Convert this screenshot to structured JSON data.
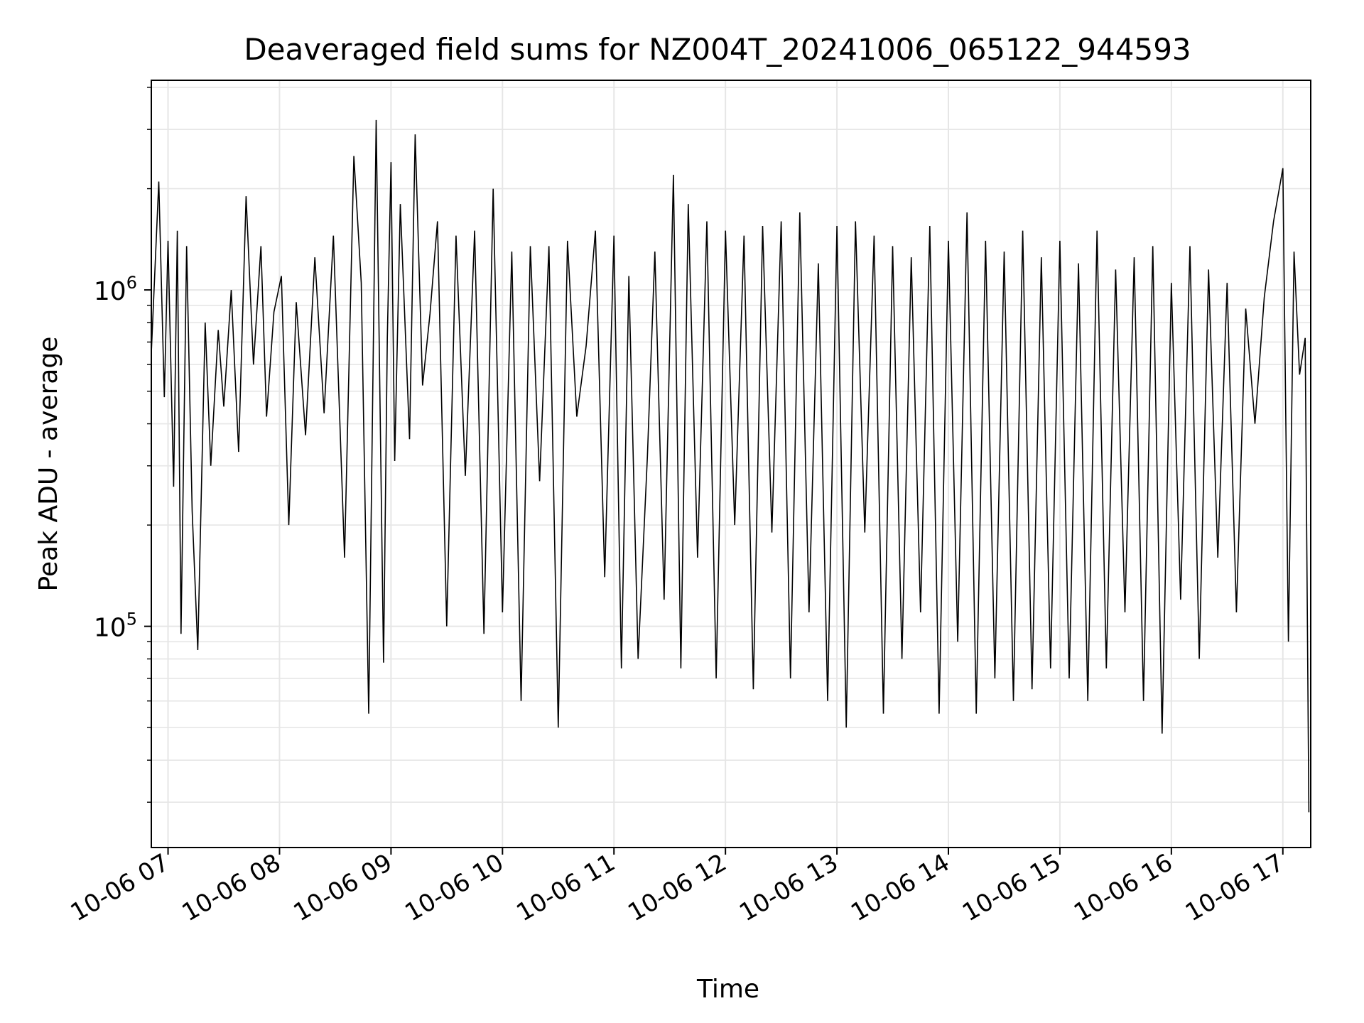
{
  "chart_data": {
    "type": "line",
    "title": "Deaveraged field sums for NZ004T_20241006_065122_944593",
    "xlabel": "Time",
    "ylabel": "Peak ADU - average",
    "x_scale": "time",
    "y_scale": "log",
    "xlim": [
      "2024-10-06 06:51",
      "2024-10-06 17:15"
    ],
    "ylim": [
      22000,
      4200000
    ],
    "x_ticks": [
      "10-06 07",
      "10-06 08",
      "10-06 09",
      "10-06 10",
      "10-06 11",
      "10-06 12",
      "10-06 13",
      "10-06 14",
      "10-06 15",
      "10-06 16",
      "10-06 17"
    ],
    "y_ticks": [
      {
        "value": 100000,
        "base": "10",
        "exp": "5"
      },
      {
        "value": 1000000,
        "base": "10",
        "exp": "6"
      }
    ],
    "grid": true,
    "line_color": "#000000",
    "series": [
      {
        "x": [
          "06:51",
          "06:55",
          "06:58",
          "07:00",
          "07:03",
          "07:05",
          "07:07",
          "07:10",
          "07:13",
          "07:16",
          "07:20",
          "07:23",
          "07:27",
          "07:30",
          "07:34",
          "07:38",
          "07:42",
          "07:46",
          "07:50",
          "07:53",
          "07:57",
          "08:01",
          "08:05",
          "08:09",
          "08:14",
          "08:19",
          "08:24",
          "08:29",
          "08:35",
          "08:40",
          "08:44",
          "08:48",
          "08:52",
          "08:56",
          "08:58",
          "09:00",
          "09:02",
          "09:05",
          "09:10",
          "09:13",
          "09:17",
          "09:21",
          "09:25",
          "09:30",
          "09:35",
          "09:40",
          "09:45",
          "09:50",
          "09:55",
          "10:00",
          "10:05",
          "10:10",
          "10:15",
          "10:20",
          "10:25",
          "10:30",
          "10:35",
          "10:40",
          "10:45",
          "10:50",
          "10:55",
          "11:00",
          "11:04",
          "11:08",
          "11:13",
          "11:18",
          "11:22",
          "11:27",
          "11:32",
          "11:36",
          "11:40",
          "11:45",
          "11:50",
          "11:55",
          "12:00",
          "12:05",
          "12:10",
          "12:15",
          "12:20",
          "12:25",
          "12:30",
          "12:35",
          "12:40",
          "12:45",
          "12:50",
          "12:55",
          "13:00",
          "13:05",
          "13:10",
          "13:15",
          "13:20",
          "13:25",
          "13:30",
          "13:35",
          "13:40",
          "13:45",
          "13:50",
          "13:55",
          "14:00",
          "14:05",
          "14:10",
          "14:15",
          "14:20",
          "14:25",
          "14:30",
          "14:35",
          "14:40",
          "14:45",
          "14:50",
          "14:55",
          "15:00",
          "15:05",
          "15:10",
          "15:15",
          "15:20",
          "15:25",
          "15:30",
          "15:35",
          "15:40",
          "15:45",
          "15:50",
          "15:55",
          "16:00",
          "16:05",
          "16:10",
          "16:15",
          "16:20",
          "16:25",
          "16:30",
          "16:35",
          "16:40",
          "16:45",
          "16:50",
          "16:55",
          "17:00",
          "17:03",
          "17:06",
          "17:09",
          "17:12",
          "17:14"
        ],
        "y": [
          650000,
          2100000,
          480000,
          1400000,
          260000,
          1500000,
          95000,
          1350000,
          220000,
          85000,
          800000,
          300000,
          760000,
          450000,
          1000000,
          330000,
          1900000,
          600000,
          1350000,
          420000,
          860000,
          1100000,
          200000,
          920000,
          370000,
          1250000,
          430000,
          1450000,
          160000,
          2500000,
          1050000,
          55000,
          3200000,
          78000,
          720000,
          2400000,
          310000,
          1800000,
          360000,
          2900000,
          520000,
          850000,
          1600000,
          100000,
          1450000,
          280000,
          1500000,
          95000,
          2000000,
          110000,
          1300000,
          60000,
          1350000,
          270000,
          1350000,
          50000,
          1400000,
          420000,
          680000,
          1500000,
          140000,
          1450000,
          75000,
          1100000,
          80000,
          320000,
          1300000,
          120000,
          2200000,
          75000,
          1800000,
          160000,
          1600000,
          70000,
          1500000,
          200000,
          1450000,
          65000,
          1550000,
          190000,
          1600000,
          70000,
          1700000,
          110000,
          1200000,
          60000,
          1550000,
          50000,
          1600000,
          190000,
          1450000,
          55000,
          1350000,
          80000,
          1250000,
          110000,
          1550000,
          55000,
          1400000,
          90000,
          1700000,
          55000,
          1400000,
          70000,
          1300000,
          60000,
          1500000,
          65000,
          1250000,
          75000,
          1400000,
          70000,
          1200000,
          60000,
          1500000,
          75000,
          1150000,
          110000,
          1250000,
          60000,
          1350000,
          48000,
          1050000,
          120000,
          1350000,
          80000,
          1150000,
          160000,
          1050000,
          110000,
          880000,
          400000,
          950000,
          1600000,
          2300000,
          90000,
          1300000,
          560000,
          720000,
          28000
        ]
      }
    ]
  }
}
